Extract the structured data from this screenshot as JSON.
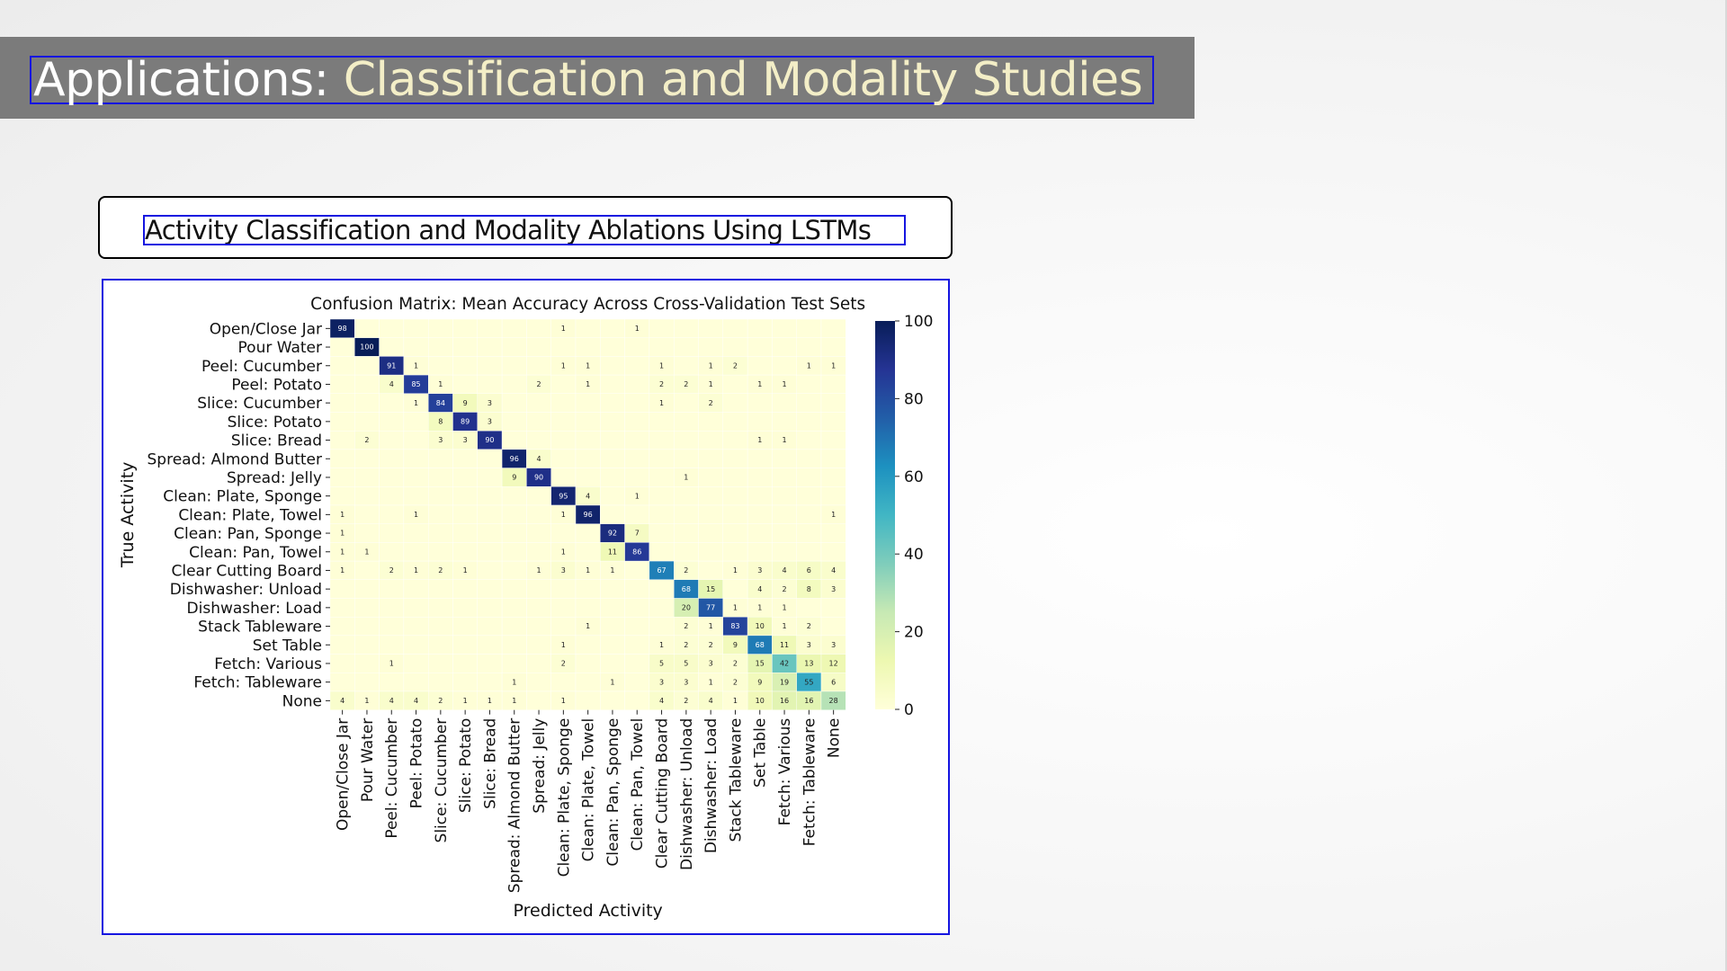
{
  "slide": {
    "title_part1": "Applications: ",
    "title_part2": "Classification and Modality Studies",
    "subtitle": "Activity Classification and Modality Ablations Using LSTMs"
  },
  "colors": {
    "title_bar": "#7b7b7b",
    "title_highlight": "#f3eec7",
    "selection_border": "#1515e0"
  },
  "chart_data": {
    "type": "heatmap",
    "title": "Confusion Matrix: Mean Accuracy Across Cross-Validation Test Sets",
    "xlabel": "Predicted Activity",
    "ylabel": "True Activity",
    "colormap": "YlGnBu",
    "colorbar_range": [
      0,
      100
    ],
    "colorbar_ticks": [
      0,
      20,
      40,
      60,
      80,
      100
    ],
    "labels": [
      "Open/Close Jar",
      "Pour Water",
      "Peel: Cucumber",
      "Peel: Potato",
      "Slice: Cucumber",
      "Slice: Potato",
      "Slice: Bread",
      "Spread: Almond Butter",
      "Spread: Jelly",
      "Clean: Plate, Sponge",
      "Clean: Plate, Towel",
      "Clean: Pan, Sponge",
      "Clean: Pan, Towel",
      "Clear Cutting Board",
      "Dishwasher: Unload",
      "Dishwasher: Load",
      "Stack Tableware",
      "Set Table",
      "Fetch: Various",
      "Fetch: Tableware",
      "None"
    ],
    "matrix": [
      [
        98,
        0,
        0,
        0,
        0,
        0,
        0,
        0,
        0,
        1,
        0,
        0,
        1,
        0,
        0,
        0,
        0,
        0,
        0,
        0,
        0
      ],
      [
        0,
        100,
        0,
        0,
        0,
        0,
        0,
        0,
        0,
        0,
        0,
        0,
        0,
        0,
        0,
        0,
        0,
        0,
        0,
        0,
        0
      ],
      [
        0,
        0,
        91,
        1,
        0,
        0,
        0,
        0,
        0,
        1,
        1,
        0,
        0,
        1,
        0,
        1,
        2,
        0,
        0,
        1,
        1
      ],
      [
        0,
        0,
        4,
        85,
        1,
        0,
        0,
        0,
        2,
        0,
        1,
        0,
        0,
        2,
        2,
        1,
        0,
        1,
        1,
        0,
        0
      ],
      [
        0,
        0,
        0,
        1,
        84,
        9,
        3,
        0,
        0,
        0,
        0,
        0,
        0,
        1,
        0,
        2,
        0,
        0,
        0,
        0,
        0
      ],
      [
        0,
        0,
        0,
        0,
        8,
        89,
        3,
        0,
        0,
        0,
        0,
        0,
        0,
        0,
        0,
        0,
        0,
        0,
        0,
        0,
        0
      ],
      [
        0,
        2,
        0,
        0,
        3,
        3,
        90,
        0,
        0,
        0,
        0,
        0,
        0,
        0,
        0,
        0,
        0,
        1,
        1,
        0,
        0
      ],
      [
        0,
        0,
        0,
        0,
        0,
        0,
        0,
        96,
        4,
        0,
        0,
        0,
        0,
        0,
        0,
        0,
        0,
        0,
        0,
        0,
        0
      ],
      [
        0,
        0,
        0,
        0,
        0,
        0,
        0,
        9,
        90,
        0,
        0,
        0,
        0,
        0,
        1,
        0,
        0,
        0,
        0,
        0,
        0
      ],
      [
        0,
        0,
        0,
        0,
        0,
        0,
        0,
        0,
        0,
        95,
        4,
        0,
        1,
        0,
        0,
        0,
        0,
        0,
        0,
        0,
        0
      ],
      [
        1,
        0,
        0,
        1,
        0,
        0,
        0,
        0,
        0,
        1,
        96,
        0,
        0,
        0,
        0,
        0,
        0,
        0,
        0,
        0,
        1
      ],
      [
        1,
        0,
        0,
        0,
        0,
        0,
        0,
        0,
        0,
        0,
        0,
        92,
        7,
        0,
        0,
        0,
        0,
        0,
        0,
        0,
        0
      ],
      [
        1,
        1,
        0,
        0,
        0,
        0,
        0,
        0,
        0,
        1,
        0,
        11,
        86,
        0,
        0,
        0,
        0,
        0,
        0,
        0,
        0
      ],
      [
        1,
        0,
        2,
        1,
        2,
        1,
        0,
        0,
        1,
        3,
        1,
        1,
        0,
        67,
        2,
        0,
        1,
        3,
        4,
        6,
        4
      ],
      [
        0,
        0,
        0,
        0,
        0,
        0,
        0,
        0,
        0,
        0,
        0,
        0,
        0,
        0,
        68,
        15,
        0,
        4,
        2,
        8,
        3
      ],
      [
        0,
        0,
        0,
        0,
        0,
        0,
        0,
        0,
        0,
        0,
        0,
        0,
        0,
        0,
        20,
        77,
        1,
        1,
        1,
        0,
        0
      ],
      [
        0,
        0,
        0,
        0,
        0,
        0,
        0,
        0,
        0,
        0,
        1,
        0,
        0,
        0,
        2,
        1,
        83,
        10,
        1,
        2,
        0
      ],
      [
        0,
        0,
        0,
        0,
        0,
        0,
        0,
        0,
        0,
        1,
        0,
        0,
        0,
        1,
        2,
        2,
        9,
        68,
        11,
        3,
        3
      ],
      [
        0,
        0,
        1,
        0,
        0,
        0,
        0,
        0,
        0,
        2,
        0,
        0,
        0,
        5,
        5,
        3,
        2,
        15,
        42,
        13,
        12
      ],
      [
        0,
        0,
        0,
        0,
        0,
        0,
        0,
        1,
        0,
        0,
        0,
        1,
        0,
        3,
        3,
        1,
        2,
        9,
        19,
        55,
        6
      ],
      [
        4,
        1,
        4,
        4,
        2,
        1,
        1,
        1,
        0,
        1,
        0,
        0,
        0,
        4,
        2,
        4,
        1,
        10,
        16,
        16,
        28
      ]
    ]
  }
}
